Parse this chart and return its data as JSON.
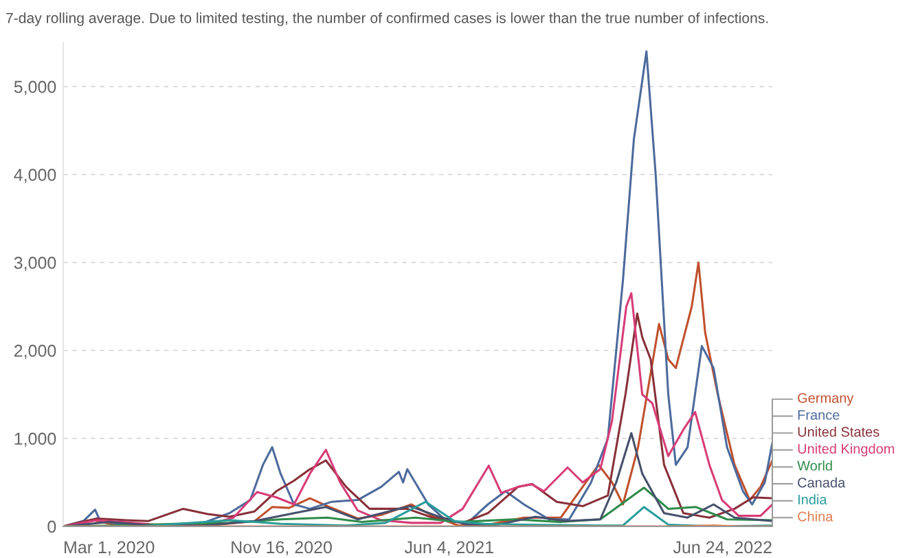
{
  "chart_data": {
    "type": "line",
    "subtitle": "7-day rolling average. Due to limited testing, the number of confirmed cases is lower than the true number of infections.",
    "xlim": [
      "2020-03-01",
      "2022-06-24"
    ],
    "xticks": [
      {
        "value": "2020-03-01",
        "label": "Mar 1, 2020"
      },
      {
        "value": "2020-11-16",
        "label": "Nov 16, 2020"
      },
      {
        "value": "2021-06-04",
        "label": "Jun 4, 2021"
      },
      {
        "value": "2022-06-24",
        "label": "Jun 24, 2022"
      }
    ],
    "ylim": [
      0,
      5500
    ],
    "yticks": [
      0,
      {
        "value": 1000,
        "label": "1,000"
      },
      {
        "value": 2000,
        "label": "2,000"
      },
      {
        "value": 3000,
        "label": "3,000"
      },
      {
        "value": 4000,
        "label": "4,000"
      },
      {
        "value": 5000,
        "label": "5,000"
      }
    ],
    "grid": "y",
    "legend": "right",
    "marker": "none",
    "line_style": "solid",
    "series": [
      {
        "name": "Germany",
        "color": "#c0502d",
        "x": [
          "2020-03-01",
          "2020-03-25",
          "2020-04-05",
          "2020-05-01",
          "2020-07-01",
          "2020-09-01",
          "2020-10-15",
          "2020-11-05",
          "2020-11-25",
          "2020-12-20",
          "2021-01-10",
          "2021-02-15",
          "2021-03-15",
          "2021-04-20",
          "2021-05-15",
          "2021-06-15",
          "2021-07-20",
          "2021-09-01",
          "2021-10-15",
          "2021-11-10",
          "2021-11-29",
          "2021-12-15",
          "2021-12-28",
          "2022-01-15",
          "2022-02-09",
          "2022-02-20",
          "2022-03-01",
          "2022-03-20",
          "2022-03-28",
          "2022-04-05",
          "2022-04-20",
          "2022-05-10",
          "2022-05-28",
          "2022-06-10",
          "2022-06-24"
        ],
        "values": [
          0,
          60,
          70,
          20,
          0,
          20,
          60,
          220,
          210,
          320,
          230,
          90,
          130,
          250,
          120,
          10,
          20,
          100,
          100,
          450,
          700,
          500,
          250,
          900,
          2300,
          1900,
          1800,
          2500,
          3000,
          2200,
          1500,
          700,
          300,
          450,
          750
        ]
      },
      {
        "name": "France",
        "color": "#4c6a9c",
        "x": [
          "2020-03-01",
          "2020-03-25",
          "2020-04-08",
          "2020-04-14",
          "2020-05-15",
          "2020-07-01",
          "2020-08-15",
          "2020-09-15",
          "2020-10-10",
          "2020-10-25",
          "2020-11-05",
          "2020-11-15",
          "2020-12-01",
          "2020-12-20",
          "2021-01-15",
          "2021-02-15",
          "2021-03-15",
          "2021-04-05",
          "2021-04-10",
          "2021-04-15",
          "2021-05-10",
          "2021-06-01",
          "2021-06-26",
          "2021-07-20",
          "2021-08-10",
          "2021-09-01",
          "2021-10-01",
          "2021-10-25",
          "2021-11-20",
          "2021-12-10",
          "2021-12-28",
          "2022-01-10",
          "2022-01-25",
          "2022-02-05",
          "2022-02-20",
          "2022-03-01",
          "2022-03-15",
          "2022-04-01",
          "2022-04-15",
          "2022-05-01",
          "2022-05-20",
          "2022-05-31",
          "2022-06-15",
          "2022-06-24"
        ],
        "values": [
          0,
          60,
          190,
          60,
          20,
          10,
          40,
          150,
          300,
          700,
          900,
          600,
          250,
          200,
          280,
          300,
          450,
          620,
          500,
          650,
          250,
          60,
          40,
          250,
          400,
          250,
          80,
          80,
          500,
          1000,
          2800,
          4400,
          5400,
          4000,
          1500,
          700,
          900,
          2050,
          1800,
          900,
          400,
          250,
          500,
          950
        ]
      },
      {
        "name": "United States",
        "color": "#883039",
        "x": [
          "2020-03-01",
          "2020-04-10",
          "2020-05-15",
          "2020-06-10",
          "2020-07-22",
          "2020-08-20",
          "2020-09-15",
          "2020-10-15",
          "2020-11-10",
          "2020-12-01",
          "2020-12-20",
          "2021-01-08",
          "2021-02-01",
          "2021-03-01",
          "2021-04-15",
          "2021-05-15",
          "2021-06-20",
          "2021-07-20",
          "2021-08-25",
          "2021-09-11",
          "2021-10-10",
          "2021-11-10",
          "2021-12-10",
          "2021-12-31",
          "2022-01-14",
          "2022-01-20",
          "2022-01-30",
          "2022-02-15",
          "2022-03-10",
          "2022-04-10",
          "2022-05-10",
          "2022-06-01",
          "2022-06-24"
        ],
        "values": [
          0,
          90,
          70,
          60,
          200,
          140,
          110,
          170,
          400,
          520,
          650,
          750,
          450,
          200,
          200,
          100,
          40,
          150,
          450,
          480,
          280,
          230,
          350,
          1500,
          2420,
          2150,
          1900,
          700,
          150,
          100,
          200,
          330,
          320
        ]
      },
      {
        "name": "United Kingdom",
        "color": "#d73c78",
        "x": [
          "2020-03-01",
          "2020-04-10",
          "2020-05-10",
          "2020-07-01",
          "2020-08-20",
          "2020-09-20",
          "2020-10-18",
          "2020-11-10",
          "2020-12-01",
          "2020-12-20",
          "2021-01-08",
          "2021-01-25",
          "2021-02-15",
          "2021-03-15",
          "2021-04-20",
          "2021-05-25",
          "2021-06-20",
          "2021-07-21",
          "2021-08-05",
          "2021-08-25",
          "2021-09-10",
          "2021-09-25",
          "2021-10-23",
          "2021-11-10",
          "2021-12-01",
          "2021-12-15",
          "2022-01-01",
          "2022-01-07",
          "2022-01-20",
          "2022-02-01",
          "2022-02-20",
          "2022-03-10",
          "2022-03-24",
          "2022-04-10",
          "2022-04-25",
          "2022-05-15",
          "2022-06-10",
          "2022-06-24"
        ],
        "values": [
          0,
          70,
          50,
          10,
          20,
          100,
          390,
          330,
          250,
          600,
          870,
          500,
          180,
          70,
          40,
          40,
          200,
          690,
          380,
          450,
          480,
          400,
          670,
          500,
          650,
          1200,
          2500,
          2650,
          1500,
          1400,
          800,
          1100,
          1300,
          700,
          300,
          120,
          120,
          250
        ]
      },
      {
        "name": "World",
        "color": "#2e8b4a",
        "x": [
          "2020-03-01",
          "2020-05-01",
          "2020-07-15",
          "2020-09-15",
          "2020-11-15",
          "2021-01-10",
          "2021-02-20",
          "2021-04-25",
          "2021-06-15",
          "2021-08-20",
          "2021-10-15",
          "2021-12-01",
          "2022-01-22",
          "2022-02-20",
          "2022-03-25",
          "2022-05-01",
          "2022-06-24"
        ],
        "values": [
          0,
          10,
          30,
          40,
          80,
          100,
          50,
          100,
          50,
          80,
          50,
          80,
          440,
          200,
          220,
          80,
          70
        ]
      },
      {
        "name": "Canada",
        "color": "#46506b",
        "x": [
          "2020-03-01",
          "2020-04-25",
          "2020-06-15",
          "2020-08-15",
          "2020-10-15",
          "2020-12-01",
          "2021-01-08",
          "2021-02-15",
          "2021-04-18",
          "2021-05-20",
          "2021-06-25",
          "2021-08-01",
          "2021-09-15",
          "2021-10-20",
          "2021-12-01",
          "2021-12-20",
          "2022-01-07",
          "2022-01-20",
          "2022-02-15",
          "2022-03-15",
          "2022-04-15",
          "2022-05-10",
          "2022-06-24"
        ],
        "values": [
          0,
          50,
          10,
          10,
          60,
          150,
          220,
          80,
          230,
          120,
          20,
          20,
          110,
          60,
          80,
          500,
          1060,
          600,
          150,
          100,
          250,
          100,
          60
        ]
      },
      {
        "name": "India",
        "color": "#2a9d9a",
        "x": [
          "2020-03-01",
          "2020-06-01",
          "2020-09-16",
          "2020-11-15",
          "2021-02-01",
          "2021-03-20",
          "2021-05-07",
          "2021-06-10",
          "2021-07-15",
          "2021-09-01",
          "2021-12-01",
          "2021-12-28",
          "2022-01-22",
          "2022-02-20",
          "2022-04-15",
          "2022-06-24"
        ],
        "values": [
          0,
          0,
          70,
          30,
          10,
          40,
          280,
          60,
          30,
          20,
          10,
          10,
          220,
          20,
          0,
          10
        ]
      },
      {
        "name": "China",
        "color": "#e07b4f",
        "x": [
          "2020-03-01",
          "2021-01-01",
          "2022-03-01",
          "2022-04-15",
          "2022-05-15",
          "2022-06-24"
        ],
        "values": [
          0,
          0,
          0,
          10,
          0,
          0
        ]
      }
    ]
  }
}
